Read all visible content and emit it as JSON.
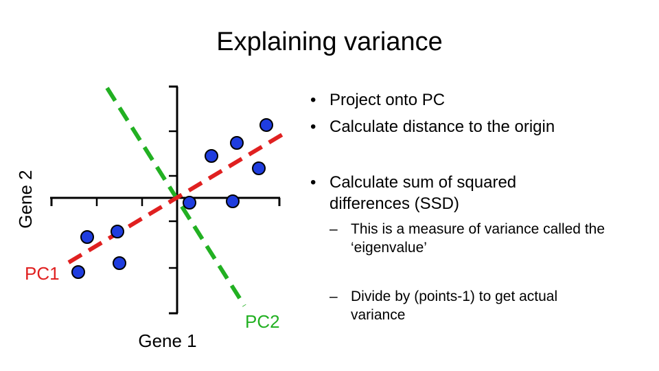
{
  "title": "Explaining variance",
  "axes": {
    "x_label": "Gene 1",
    "y_label": "Gene 2"
  },
  "components": {
    "pc1": {
      "label": "PC1",
      "color": "#e02020",
      "style": "dashed"
    },
    "pc2": {
      "label": "PC2",
      "color": "#22b022",
      "style": "dashed"
    }
  },
  "point_color": "#1f3ddf",
  "bullets": {
    "level1": [
      "Project onto PC",
      "Calculate distance to the origin",
      "Calculate sum of squared differences (SSD)"
    ],
    "level2": [
      "This is a measure of variance called the ‘eigenvalue’",
      "Divide by (points-1) to get actual variance"
    ],
    "bullet_glyph": "•",
    "dash_glyph": "–"
  }
}
